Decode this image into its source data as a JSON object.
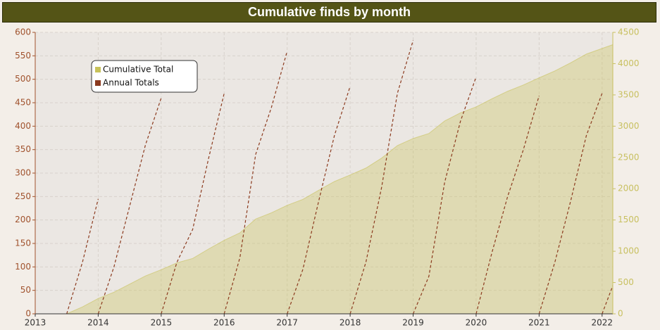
{
  "chart_data": {
    "type": "line",
    "title": "Cumulative finds by month",
    "xlim": [
      2013,
      2022.17
    ],
    "xticks": [
      2013,
      2014,
      2015,
      2016,
      2017,
      2018,
      2019,
      2020,
      2021,
      2022
    ],
    "ylim": [
      0,
      600
    ],
    "yticks": [
      0,
      50,
      100,
      150,
      200,
      250,
      300,
      350,
      400,
      450,
      500,
      550,
      600
    ],
    "y2lim": [
      0,
      4500
    ],
    "y2ticks": [
      0,
      500,
      1000,
      1500,
      2000,
      2500,
      3000,
      3500,
      4000,
      4500
    ],
    "grid": true,
    "legend": "top-left",
    "series": [
      {
        "name": "Cumulative Total",
        "color": "#c8c25a",
        "axis": "y2",
        "fill": true,
        "x": [
          2013,
          2013.25,
          2013.5,
          2013.75,
          2014,
          2014.25,
          2014.5,
          2014.75,
          2015,
          2015.25,
          2015.5,
          2015.75,
          2016,
          2016.25,
          2016.5,
          2016.75,
          2017,
          2017.25,
          2017.5,
          2017.75,
          2018,
          2018.25,
          2018.5,
          2018.75,
          2019,
          2019.25,
          2019.5,
          2019.75,
          2020,
          2020.25,
          2020.5,
          2020.75,
          2021,
          2021.25,
          2021.5,
          2021.75,
          2022,
          2022.17
        ],
        "values": [
          0,
          0,
          0,
          110,
          245,
          345,
          475,
          605,
          705,
          815,
          885,
          1035,
          1175,
          1295,
          1515,
          1615,
          1735,
          1830,
          1975,
          2115,
          2220,
          2330,
          2490,
          2690,
          2803,
          2883,
          3083,
          3213,
          3308,
          3438,
          3558,
          3658,
          3773,
          3883,
          4013,
          4153,
          4243,
          4303
        ]
      },
      {
        "name": "Annual Totals",
        "color": "#8b3a1e",
        "axis": "y",
        "dashed": true,
        "x": [
          2013.5,
          2013.75,
          2014,
          2014,
          2014,
          2014.25,
          2014.5,
          2014.75,
          2015,
          2015,
          2015,
          2015.25,
          2015.5,
          2015.75,
          2016,
          2016,
          2016,
          2016.25,
          2016.5,
          2016.75,
          2017,
          2017,
          2017,
          2017.25,
          2017.5,
          2017.75,
          2018,
          2018,
          2018,
          2018.25,
          2018.5,
          2018.75,
          2019,
          2019,
          2019,
          2019.25,
          2019.5,
          2019.75,
          2020,
          2020,
          2020,
          2020.25,
          2020.5,
          2020.75,
          2021,
          2021,
          2021,
          2021.25,
          2021.5,
          2021.75,
          2022,
          2022,
          2022,
          2022.17
        ],
        "values": [
          0,
          110,
          245,
          null,
          0,
          100,
          230,
          360,
          460,
          null,
          0,
          110,
          180,
          330,
          470,
          null,
          0,
          120,
          340,
          440,
          560,
          null,
          0,
          95,
          240,
          380,
          485,
          null,
          0,
          110,
          270,
          470,
          583,
          null,
          0,
          80,
          280,
          410,
          505,
          null,
          0,
          130,
          250,
          350,
          465,
          null,
          0,
          110,
          240,
          380,
          470,
          null,
          0,
          60
        ]
      }
    ]
  }
}
